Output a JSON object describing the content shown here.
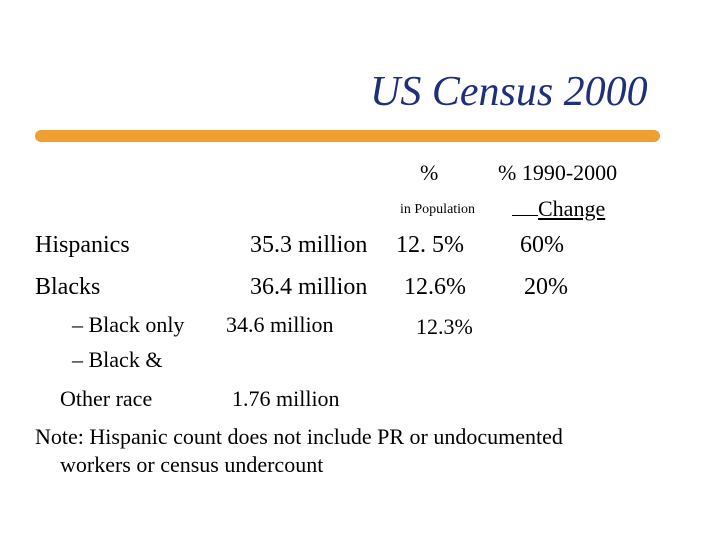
{
  "slide": {
    "title": "US Census 2000",
    "accent_color": "#f0a030",
    "title_color": "#1f2f7a"
  },
  "headers": {
    "pct": "%",
    "pct_range": "% 1990-2000",
    "in_population": "in Population",
    "change": "Change"
  },
  "rows": [
    {
      "label": "Hispanics",
      "count": "35.3 million",
      "pct": "12. 5%",
      "change": "60%"
    },
    {
      "label": "Blacks",
      "count": "36.4 million",
      "pct": "12.6%",
      "change": "20%"
    }
  ],
  "subrows": [
    {
      "label": "– Black only",
      "count": "34.6 million",
      "pct": "12.3%"
    },
    {
      "label": "– Black &"
    }
  ],
  "other_race": {
    "label": "Other race",
    "count": "1.76 million"
  },
  "note": {
    "line1": "Note: Hispanic count does not include PR or undocumented",
    "line2": "workers or census undercount"
  }
}
